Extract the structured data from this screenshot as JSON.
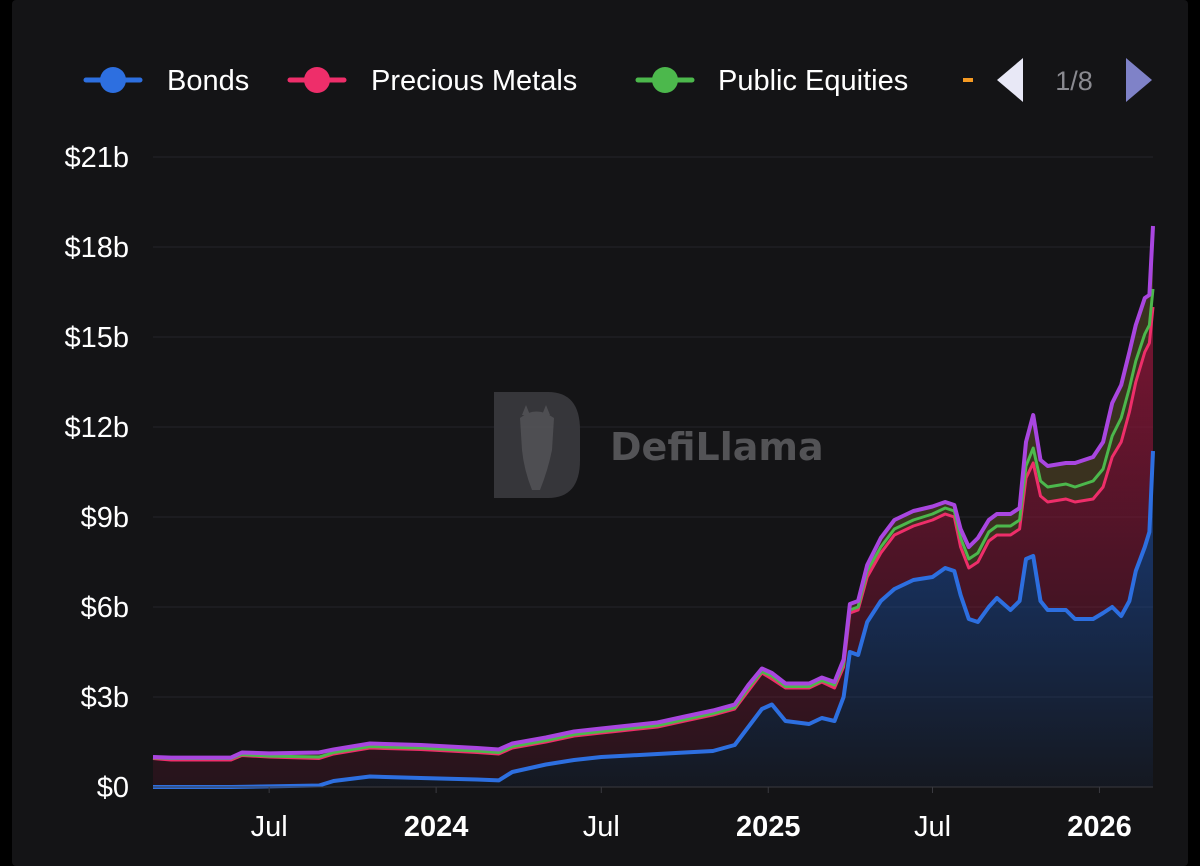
{
  "watermark": "DefiLlama",
  "legend": {
    "items": [
      {
        "label": "Bonds",
        "color": "#2d6fe0"
      },
      {
        "label": "Precious Metals",
        "color": "#ee2e6a"
      },
      {
        "label": "Public Equities",
        "color": "#4cb84c"
      }
    ],
    "partial_color": "#f59a23",
    "page": "1/8"
  },
  "chart_data": {
    "type": "area",
    "stacked": true,
    "y_ticks": [
      "$0",
      "$3b",
      "$6b",
      "$9b",
      "$12b",
      "$15b",
      "$18b",
      "$21b"
    ],
    "ylim": [
      0,
      21
    ],
    "x_ticks": [
      {
        "label": "Jul",
        "bold": false
      },
      {
        "label": "2024",
        "bold": true
      },
      {
        "label": "Jul",
        "bold": false
      },
      {
        "label": "2025",
        "bold": true
      },
      {
        "label": "Jul",
        "bold": false
      },
      {
        "label": "2026",
        "bold": true
      }
    ],
    "x_range": [
      "2023-02-23",
      "2026-03-01"
    ],
    "y_unit": "billions USD",
    "series": [
      {
        "name": "Bonds",
        "color": "#2d6fe0",
        "points": [
          [
            "2023-02-23",
            0.0
          ],
          [
            "2023-05-20",
            0.0
          ],
          [
            "2023-08-25",
            0.05
          ],
          [
            "2023-09-10",
            0.2
          ],
          [
            "2023-10-20",
            0.35
          ],
          [
            "2023-12-15",
            0.3
          ],
          [
            "2024-02-15",
            0.25
          ],
          [
            "2024-03-10",
            0.22
          ],
          [
            "2024-03-25",
            0.5
          ],
          [
            "2024-05-01",
            0.75
          ],
          [
            "2024-06-01",
            0.9
          ],
          [
            "2024-07-01",
            1.0
          ],
          [
            "2024-08-01",
            1.05
          ],
          [
            "2024-09-01",
            1.1
          ],
          [
            "2024-10-01",
            1.15
          ],
          [
            "2024-11-01",
            1.2
          ],
          [
            "2024-11-25",
            1.4
          ],
          [
            "2024-12-10",
            2.0
          ],
          [
            "2024-12-25",
            2.6
          ],
          [
            "2025-01-05",
            2.75
          ],
          [
            "2025-01-20",
            2.2
          ],
          [
            "2025-02-15",
            2.1
          ],
          [
            "2025-03-01",
            2.3
          ],
          [
            "2025-03-15",
            2.2
          ],
          [
            "2025-03-25",
            3.0
          ],
          [
            "2025-04-01",
            4.5
          ],
          [
            "2025-04-10",
            4.4
          ],
          [
            "2025-04-20",
            5.5
          ],
          [
            "2025-05-05",
            6.2
          ],
          [
            "2025-05-20",
            6.6
          ],
          [
            "2025-06-10",
            6.9
          ],
          [
            "2025-07-01",
            7.0
          ],
          [
            "2025-07-15",
            7.3
          ],
          [
            "2025-07-25",
            7.2
          ],
          [
            "2025-08-01",
            6.4
          ],
          [
            "2025-08-10",
            5.6
          ],
          [
            "2025-08-20",
            5.5
          ],
          [
            "2025-09-01",
            6.0
          ],
          [
            "2025-09-10",
            6.3
          ],
          [
            "2025-09-25",
            5.9
          ],
          [
            "2025-10-05",
            6.2
          ],
          [
            "2025-10-12",
            7.6
          ],
          [
            "2025-10-20",
            7.7
          ],
          [
            "2025-10-28",
            6.2
          ],
          [
            "2025-11-05",
            5.9
          ],
          [
            "2025-11-25",
            5.9
          ],
          [
            "2025-12-05",
            5.6
          ],
          [
            "2025-12-25",
            5.6
          ],
          [
            "2026-01-05",
            5.8
          ],
          [
            "2026-01-15",
            6.0
          ],
          [
            "2026-01-25",
            5.7
          ],
          [
            "2026-02-03",
            6.2
          ],
          [
            "2026-02-10",
            7.2
          ],
          [
            "2026-02-20",
            8.0
          ],
          [
            "2026-02-25",
            8.5
          ],
          [
            "2026-03-01",
            11.2
          ]
        ]
      },
      {
        "name": "Precious Metals",
        "color": "#ee2e6a",
        "points": [
          [
            "2023-02-23",
            0.95
          ],
          [
            "2023-03-15",
            0.9
          ],
          [
            "2023-05-20",
            0.9
          ],
          [
            "2023-06-01",
            1.05
          ],
          [
            "2023-07-01",
            1.0
          ],
          [
            "2023-08-25",
            0.95
          ],
          [
            "2023-09-10",
            1.1
          ],
          [
            "2023-10-20",
            1.3
          ],
          [
            "2023-12-15",
            1.25
          ],
          [
            "2024-02-15",
            1.15
          ],
          [
            "2024-03-10",
            1.1
          ],
          [
            "2024-03-25",
            1.3
          ],
          [
            "2024-05-01",
            1.5
          ],
          [
            "2024-06-01",
            1.7
          ],
          [
            "2024-07-01",
            1.8
          ],
          [
            "2024-08-01",
            1.9
          ],
          [
            "2024-09-01",
            2.0
          ],
          [
            "2024-10-01",
            2.2
          ],
          [
            "2024-11-01",
            2.4
          ],
          [
            "2024-11-25",
            2.6
          ],
          [
            "2024-12-10",
            3.2
          ],
          [
            "2024-12-25",
            3.8
          ],
          [
            "2025-01-05",
            3.6
          ],
          [
            "2025-01-20",
            3.3
          ],
          [
            "2025-02-15",
            3.3
          ],
          [
            "2025-03-01",
            3.5
          ],
          [
            "2025-03-15",
            3.3
          ],
          [
            "2025-03-25",
            4.0
          ],
          [
            "2025-04-01",
            5.8
          ],
          [
            "2025-04-10",
            5.9
          ],
          [
            "2025-04-20",
            7.0
          ],
          [
            "2025-05-05",
            7.8
          ],
          [
            "2025-05-20",
            8.4
          ],
          [
            "2025-06-10",
            8.7
          ],
          [
            "2025-07-01",
            8.9
          ],
          [
            "2025-07-15",
            9.1
          ],
          [
            "2025-07-25",
            9.0
          ],
          [
            "2025-08-01",
            8.0
          ],
          [
            "2025-08-10",
            7.3
          ],
          [
            "2025-08-20",
            7.5
          ],
          [
            "2025-09-01",
            8.2
          ],
          [
            "2025-09-10",
            8.4
          ],
          [
            "2025-09-25",
            8.4
          ],
          [
            "2025-10-05",
            8.6
          ],
          [
            "2025-10-12",
            10.3
          ],
          [
            "2025-10-20",
            10.8
          ],
          [
            "2025-10-28",
            9.7
          ],
          [
            "2025-11-05",
            9.5
          ],
          [
            "2025-11-25",
            9.6
          ],
          [
            "2025-12-05",
            9.5
          ],
          [
            "2025-12-25",
            9.6
          ],
          [
            "2026-01-05",
            10.0
          ],
          [
            "2026-01-15",
            11.0
          ],
          [
            "2026-01-25",
            11.5
          ],
          [
            "2026-02-03",
            12.5
          ],
          [
            "2026-02-10",
            13.5
          ],
          [
            "2026-02-20",
            14.5
          ],
          [
            "2026-02-25",
            14.8
          ],
          [
            "2026-03-01",
            16.0
          ]
        ]
      },
      {
        "name": "Public Equities",
        "color": "#4cb84c",
        "points": [
          [
            "2023-02-23",
            0.97
          ],
          [
            "2023-03-15",
            0.95
          ],
          [
            "2023-05-20",
            0.95
          ],
          [
            "2023-06-01",
            1.08
          ],
          [
            "2023-07-01",
            1.03
          ],
          [
            "2023-08-25",
            1.0
          ],
          [
            "2023-09-10",
            1.15
          ],
          [
            "2023-10-20",
            1.35
          ],
          [
            "2023-12-15",
            1.3
          ],
          [
            "2024-02-15",
            1.2
          ],
          [
            "2024-03-10",
            1.15
          ],
          [
            "2024-03-25",
            1.35
          ],
          [
            "2024-05-01",
            1.55
          ],
          [
            "2024-06-01",
            1.75
          ],
          [
            "2024-07-01",
            1.85
          ],
          [
            "2024-08-01",
            1.95
          ],
          [
            "2024-09-01",
            2.05
          ],
          [
            "2024-10-01",
            2.25
          ],
          [
            "2024-11-01",
            2.45
          ],
          [
            "2024-11-25",
            2.65
          ],
          [
            "2024-12-10",
            3.3
          ],
          [
            "2024-12-25",
            3.85
          ],
          [
            "2025-01-05",
            3.7
          ],
          [
            "2025-01-20",
            3.35
          ],
          [
            "2025-02-15",
            3.35
          ],
          [
            "2025-03-01",
            3.55
          ],
          [
            "2025-03-15",
            3.4
          ],
          [
            "2025-03-25",
            4.1
          ],
          [
            "2025-04-01",
            5.9
          ],
          [
            "2025-04-10",
            6.0
          ],
          [
            "2025-04-20",
            7.2
          ],
          [
            "2025-05-05",
            8.0
          ],
          [
            "2025-05-20",
            8.6
          ],
          [
            "2025-06-10",
            8.9
          ],
          [
            "2025-07-01",
            9.1
          ],
          [
            "2025-07-15",
            9.3
          ],
          [
            "2025-07-25",
            9.2
          ],
          [
            "2025-08-01",
            8.3
          ],
          [
            "2025-08-10",
            7.6
          ],
          [
            "2025-08-20",
            7.8
          ],
          [
            "2025-09-01",
            8.5
          ],
          [
            "2025-09-10",
            8.7
          ],
          [
            "2025-09-25",
            8.7
          ],
          [
            "2025-10-05",
            8.9
          ],
          [
            "2025-10-12",
            10.7
          ],
          [
            "2025-10-20",
            11.3
          ],
          [
            "2025-10-28",
            10.2
          ],
          [
            "2025-11-05",
            10.0
          ],
          [
            "2025-11-25",
            10.1
          ],
          [
            "2025-12-05",
            10.0
          ],
          [
            "2025-12-25",
            10.2
          ],
          [
            "2026-01-05",
            10.6
          ],
          [
            "2026-01-15",
            11.7
          ],
          [
            "2026-01-25",
            12.3
          ],
          [
            "2026-02-03",
            13.3
          ],
          [
            "2026-02-10",
            14.2
          ],
          [
            "2026-02-20",
            15.1
          ],
          [
            "2026-02-25",
            15.4
          ],
          [
            "2026-03-01",
            16.6
          ]
        ]
      },
      {
        "name": "",
        "color": "#a946e0",
        "points": [
          [
            "2023-02-23",
            1.0
          ],
          [
            "2023-03-15",
            0.98
          ],
          [
            "2023-05-20",
            0.98
          ],
          [
            "2023-06-01",
            1.15
          ],
          [
            "2023-07-01",
            1.12
          ],
          [
            "2023-08-25",
            1.15
          ],
          [
            "2023-09-10",
            1.25
          ],
          [
            "2023-10-20",
            1.45
          ],
          [
            "2023-12-15",
            1.4
          ],
          [
            "2024-02-15",
            1.3
          ],
          [
            "2024-03-10",
            1.25
          ],
          [
            "2024-03-25",
            1.45
          ],
          [
            "2024-05-01",
            1.65
          ],
          [
            "2024-06-01",
            1.85
          ],
          [
            "2024-07-01",
            1.95
          ],
          [
            "2024-08-01",
            2.05
          ],
          [
            "2024-09-01",
            2.15
          ],
          [
            "2024-10-01",
            2.35
          ],
          [
            "2024-11-01",
            2.55
          ],
          [
            "2024-11-25",
            2.75
          ],
          [
            "2024-12-10",
            3.4
          ],
          [
            "2024-12-25",
            3.95
          ],
          [
            "2025-01-05",
            3.8
          ],
          [
            "2025-01-20",
            3.45
          ],
          [
            "2025-02-15",
            3.45
          ],
          [
            "2025-03-01",
            3.65
          ],
          [
            "2025-03-15",
            3.5
          ],
          [
            "2025-03-25",
            4.25
          ],
          [
            "2025-04-01",
            6.1
          ],
          [
            "2025-04-10",
            6.2
          ],
          [
            "2025-04-20",
            7.4
          ],
          [
            "2025-05-05",
            8.3
          ],
          [
            "2025-05-20",
            8.9
          ],
          [
            "2025-06-10",
            9.2
          ],
          [
            "2025-07-01",
            9.35
          ],
          [
            "2025-07-15",
            9.5
          ],
          [
            "2025-07-25",
            9.4
          ],
          [
            "2025-08-01",
            8.6
          ],
          [
            "2025-08-10",
            8.0
          ],
          [
            "2025-08-20",
            8.3
          ],
          [
            "2025-09-01",
            8.9
          ],
          [
            "2025-09-10",
            9.1
          ],
          [
            "2025-09-25",
            9.1
          ],
          [
            "2025-10-05",
            9.3
          ],
          [
            "2025-10-12",
            11.5
          ],
          [
            "2025-10-20",
            12.4
          ],
          [
            "2025-10-28",
            10.9
          ],
          [
            "2025-11-05",
            10.7
          ],
          [
            "2025-11-25",
            10.8
          ],
          [
            "2025-12-05",
            10.8
          ],
          [
            "2025-12-25",
            11.0
          ],
          [
            "2026-01-05",
            11.5
          ],
          [
            "2026-01-15",
            12.8
          ],
          [
            "2026-01-25",
            13.4
          ],
          [
            "2026-02-03",
            14.5
          ],
          [
            "2026-02-10",
            15.4
          ],
          [
            "2026-02-20",
            16.3
          ],
          [
            "2026-02-25",
            16.4
          ],
          [
            "2026-03-01",
            18.7
          ]
        ]
      }
    ]
  }
}
